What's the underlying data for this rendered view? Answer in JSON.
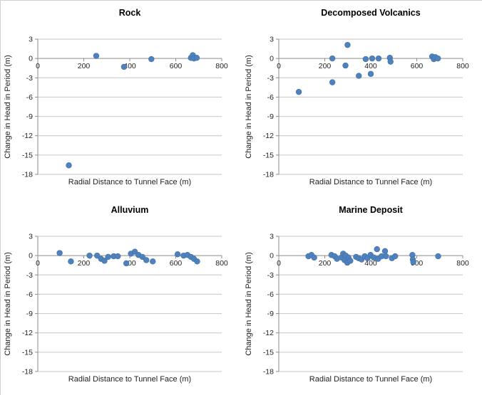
{
  "page": {
    "background": "#ffffff",
    "layout": "2x2-scatter-grid"
  },
  "style": {
    "marker_color": "#4F81BD",
    "marker_edge_color": "#3E6FA7",
    "gridline_color": "#C6C6C6",
    "axis_line_color": "#8C8C8C",
    "tick_text_color": "#1F1F1F",
    "title_text_color": "#000000"
  },
  "chart_data": [
    {
      "type": "scatter",
      "title": "Rock",
      "xlabel": "Radial Distance to Tunnel  Face (m)",
      "ylabel": "Change in Head in Period (m)",
      "xlim": [
        0,
        800
      ],
      "ylim": [
        -18,
        3
      ],
      "xticks": [
        0,
        200,
        400,
        600,
        800
      ],
      "yticks": [
        3,
        0,
        -3,
        -6,
        -9,
        -12,
        -15,
        -18
      ],
      "grid": "horizontal",
      "legend": "none",
      "points": [
        [
          135,
          -16.6
        ],
        [
          254,
          0.4
        ],
        [
          375,
          -1.3
        ],
        [
          494,
          -0.1
        ],
        [
          666,
          0.1
        ],
        [
          674,
          0.5
        ],
        [
          679,
          0.0
        ],
        [
          691,
          0.1
        ]
      ]
    },
    {
      "type": "scatter",
      "title": "Decomposed Volcanics",
      "xlabel": "Radial Distance to Tunnel  Face (m)",
      "ylabel": "Change in Head in Period (m)",
      "xlim": [
        0,
        800
      ],
      "ylim": [
        -18,
        3
      ],
      "xticks": [
        0,
        200,
        400,
        600,
        800
      ],
      "yticks": [
        3,
        0,
        -3,
        -6,
        -9,
        -12,
        -15,
        -18
      ],
      "grid": "horizontal",
      "legend": "none",
      "points": [
        [
          87,
          -5.2
        ],
        [
          233,
          0.0
        ],
        [
          233,
          -3.7
        ],
        [
          290,
          -1.1
        ],
        [
          299,
          2.1
        ],
        [
          348,
          -2.7
        ],
        [
          378,
          -0.1
        ],
        [
          400,
          -2.4
        ],
        [
          406,
          0.0
        ],
        [
          434,
          0.0
        ],
        [
          483,
          0.1
        ],
        [
          486,
          -0.5
        ],
        [
          667,
          0.3
        ],
        [
          674,
          -0.1
        ],
        [
          681,
          0.2
        ],
        [
          692,
          0.0
        ]
      ]
    },
    {
      "type": "scatter",
      "title": "Alluvium",
      "xlabel": "Radial Distance to Tunnel  Face (m)",
      "ylabel": "Change in Head in Period (m)",
      "xlim": [
        0,
        800
      ],
      "ylim": [
        -18,
        3
      ],
      "xticks": [
        0,
        200,
        400,
        600,
        800
      ],
      "yticks": [
        3,
        0,
        -3,
        -6,
        -9,
        -12,
        -15,
        -18
      ],
      "grid": "horizontal",
      "legend": "none",
      "points": [
        [
          95,
          0.4
        ],
        [
          144,
          -0.9
        ],
        [
          225,
          0.0
        ],
        [
          258,
          0.0
        ],
        [
          275,
          -0.5
        ],
        [
          290,
          -0.8
        ],
        [
          306,
          -0.2
        ],
        [
          330,
          -0.1
        ],
        [
          348,
          -0.1
        ],
        [
          385,
          -1.2
        ],
        [
          405,
          0.3
        ],
        [
          422,
          0.6
        ],
        [
          438,
          0.1
        ],
        [
          455,
          -0.2
        ],
        [
          472,
          -0.7
        ],
        [
          500,
          -0.9
        ],
        [
          608,
          0.2
        ],
        [
          634,
          0.0
        ],
        [
          651,
          0.1
        ],
        [
          666,
          -0.2
        ],
        [
          679,
          -0.5
        ],
        [
          693,
          -0.9
        ]
      ]
    },
    {
      "type": "scatter",
      "title": "Marine Deposit",
      "xlabel": "Radial Distance to Tunnel  Face (m)",
      "ylabel": "Change in Head in Period (m)",
      "xlim": [
        0,
        800
      ],
      "ylim": [
        -18,
        3
      ],
      "xticks": [
        0,
        200,
        400,
        600,
        800
      ],
      "yticks": [
        3,
        0,
        -3,
        -6,
        -9,
        -12,
        -15,
        -18
      ],
      "grid": "horizontal",
      "legend": "none",
      "points": [
        [
          129,
          -0.1
        ],
        [
          142,
          0.1
        ],
        [
          154,
          -0.3
        ],
        [
          229,
          0.1
        ],
        [
          243,
          -0.1
        ],
        [
          253,
          -0.5
        ],
        [
          273,
          -0.3
        ],
        [
          280,
          0.3
        ],
        [
          286,
          -0.7
        ],
        [
          291,
          0.0
        ],
        [
          298,
          -1.1
        ],
        [
          303,
          -0.3
        ],
        [
          311,
          -0.8
        ],
        [
          336,
          -0.2
        ],
        [
          347,
          -0.4
        ],
        [
          360,
          -0.6
        ],
        [
          374,
          -0.1
        ],
        [
          386,
          -0.4
        ],
        [
          399,
          0.1
        ],
        [
          413,
          -0.3
        ],
        [
          427,
          1.0
        ],
        [
          432,
          -0.5
        ],
        [
          447,
          -0.1
        ],
        [
          462,
          0.7
        ],
        [
          466,
          -0.1
        ],
        [
          492,
          -0.4
        ],
        [
          506,
          -0.1
        ],
        [
          581,
          0.1
        ],
        [
          583,
          -0.6
        ],
        [
          585,
          -1.0
        ],
        [
          693,
          -0.1
        ]
      ]
    }
  ]
}
